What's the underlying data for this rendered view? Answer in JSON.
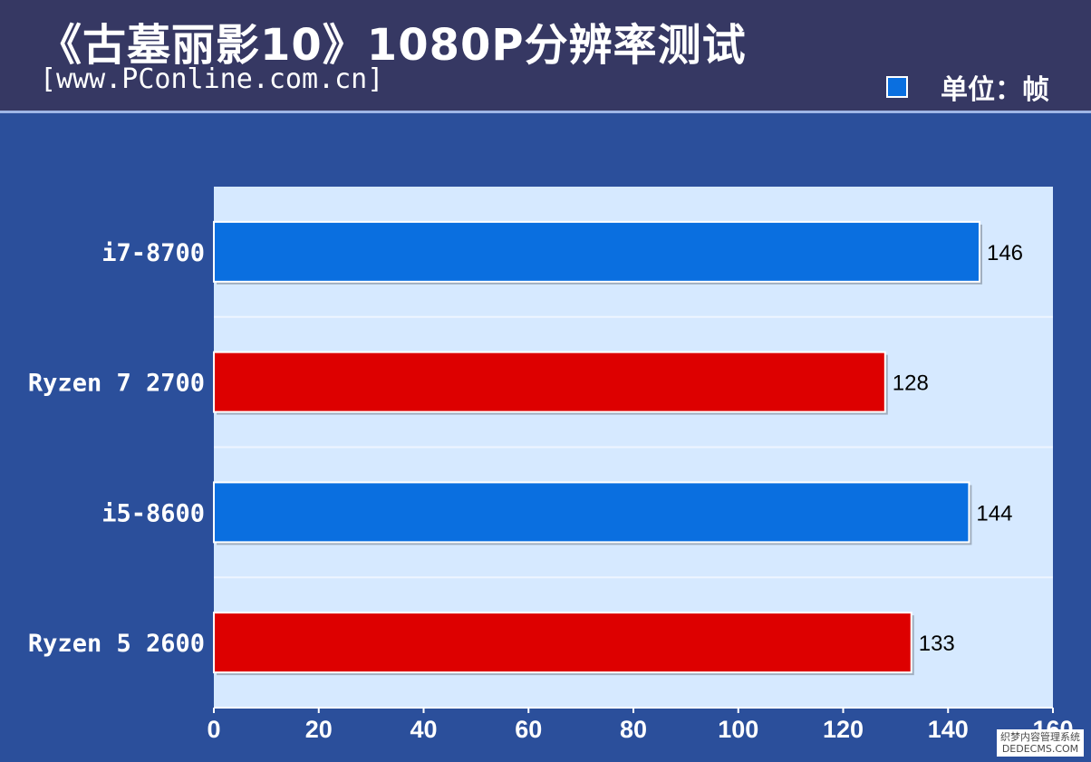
{
  "header": {
    "title": "《古墓丽影10》1080P分辨率测试",
    "source": "[www.PConline.com.cn]",
    "unit_label": "单位：帧"
  },
  "watermark": {
    "line1": "织梦内容管理系统",
    "line2": "DEDECMS.COM"
  },
  "colors": {
    "intel": "#0a6fe0",
    "amd": "#dd0000",
    "plot_bg": "#d6e9ff",
    "page_bg": "#2b4f9b",
    "header_bg": "#363863"
  },
  "chart_data": {
    "type": "bar",
    "orientation": "horizontal",
    "categories": [
      "i7-8700",
      "Ryzen 7 2700",
      "i5-8600",
      "Ryzen 5 2600"
    ],
    "values": [
      146,
      128,
      144,
      133
    ],
    "bar_colors": [
      "#0a6fe0",
      "#dd0000",
      "#0a6fe0",
      "#dd0000"
    ],
    "xlim": [
      0,
      160
    ],
    "xticks": [
      0,
      20,
      40,
      60,
      80,
      100,
      120,
      140,
      160
    ],
    "grid": false,
    "legend": "top-right"
  }
}
